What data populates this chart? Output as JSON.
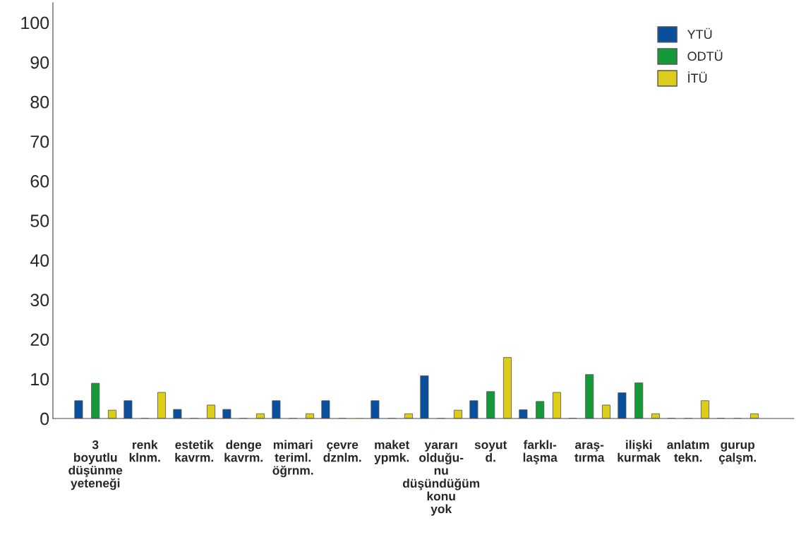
{
  "chart_data": {
    "type": "bar",
    "categories": [
      "3\nboyutlu\ndüşünme\nyeteneği",
      "renk\nklnm.",
      "estetik\nkavrm.",
      "denge\nkavrm.",
      "mimari\nteriml.\nöğrnm.",
      "çevre\ndznlm.",
      "maket\nypmk.",
      "yararı\nolduğu-\nnu\ndüşündüğüm\nkonu\nyok",
      "soyut\nd.",
      "farklı-\nlaşma",
      "araş-\ntırma",
      "ilişki\nkurmak",
      "anlatım\ntekn.",
      "gurup\nçalşm."
    ],
    "series": [
      {
        "name": "YTÜ",
        "color": "#0a4f9e",
        "values": [
          4.5,
          4.5,
          2.3,
          2.3,
          4.5,
          4.5,
          4.5,
          10.8,
          4.5,
          2.2,
          0,
          6.5,
          0,
          0
        ]
      },
      {
        "name": "ODTÜ",
        "color": "#159a3a",
        "values": [
          8.9,
          0,
          0,
          0,
          0,
          0,
          0,
          0,
          6.8,
          4.3,
          11.1,
          9.0,
          0,
          0
        ]
      },
      {
        "name": "İTÜ",
        "color": "#dccd1a",
        "values": [
          2.1,
          6.6,
          3.4,
          1.2,
          1.2,
          0,
          1.2,
          2.1,
          15.4,
          6.6,
          3.4,
          1.2,
          4.5,
          1.2
        ]
      }
    ],
    "ylim": [
      0,
      105
    ],
    "yticks": [
      0,
      10,
      20,
      30,
      40,
      50,
      60,
      70,
      80,
      90,
      100
    ],
    "grid": false,
    "legend": "top right"
  }
}
